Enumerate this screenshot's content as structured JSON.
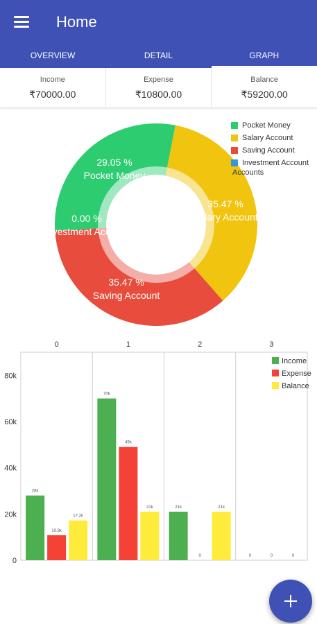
{
  "appbar": {
    "title": "Home"
  },
  "tabs": [
    {
      "label": "OVERVIEW",
      "active": false
    },
    {
      "label": "DETAIL",
      "active": false
    },
    {
      "label": "GRAPH",
      "active": true
    }
  ],
  "summary": [
    {
      "label": "Income",
      "value": "₹70000.00"
    },
    {
      "label": "Expense",
      "value": "₹10800.00"
    },
    {
      "label": "Balance",
      "value": "₹59200.00"
    }
  ],
  "colors": {
    "primary": "#3f51b5",
    "pocket": "#2ecc71",
    "salary": "#f1c40f",
    "saving": "#e74c3c",
    "investment": "#3498db",
    "income": "#4caf50",
    "expense": "#f44336",
    "balance": "#ffeb3b"
  },
  "legend_extra": "Accounts",
  "chart_data": [
    {
      "type": "pie",
      "donut": true,
      "slices": [
        {
          "label": "Pocket Money",
          "value": 29.05,
          "text": "29.05 %",
          "color": "#2ecc71"
        },
        {
          "label": "Salary Account",
          "value": 35.47,
          "text": "35.47 %",
          "color": "#f1c40f"
        },
        {
          "label": "Saving Account",
          "value": 35.47,
          "text": "35.47 %",
          "color": "#e74c3c"
        },
        {
          "label": "Investment Account",
          "value": 0.0,
          "text": "0.00 %",
          "color": "#3498db"
        }
      ],
      "legend": [
        "Pocket Money",
        "Salary Account",
        "Saving Account",
        "Investment Account"
      ],
      "legend_position": "top-right"
    },
    {
      "type": "bar",
      "categories": [
        "0",
        "1",
        "2",
        "3"
      ],
      "series": [
        {
          "name": "Income",
          "color": "#4caf50",
          "values": [
            28000,
            70000,
            21000,
            0
          ],
          "labels": [
            "28k",
            "70k",
            "21k",
            "0"
          ]
        },
        {
          "name": "Expense",
          "color": "#f44336",
          "values": [
            10800,
            49000,
            0,
            0
          ],
          "labels": [
            "10.8k",
            "49k",
            "0",
            "0"
          ]
        },
        {
          "name": "Balance",
          "color": "#ffeb3b",
          "values": [
            17200,
            21000,
            21000,
            0
          ],
          "labels": [
            "17.2k",
            "21k",
            "21k",
            "0"
          ]
        }
      ],
      "ylim": [
        0,
        90000
      ],
      "yticks": [
        0,
        20000,
        40000,
        60000,
        80000
      ],
      "ytick_labels": [
        "0",
        "20k",
        "40k",
        "60k",
        "80k"
      ],
      "xaxis_position": "top",
      "legend_position": "top-right",
      "grid": true
    }
  ]
}
